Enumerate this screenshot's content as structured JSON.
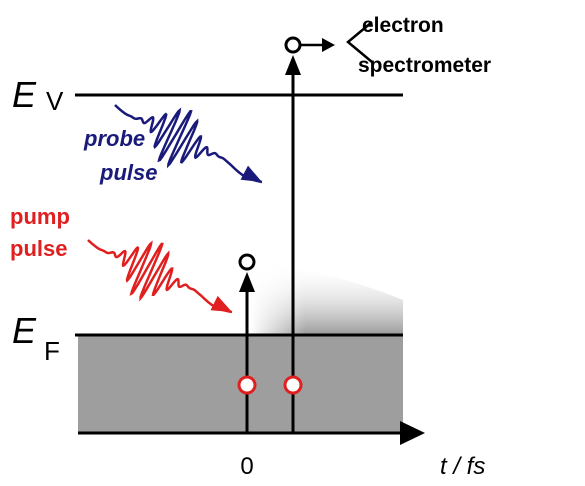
{
  "labels": {
    "ev_main": "E",
    "ev_sub": "V",
    "ef_main": "E",
    "ef_sub": "F",
    "probe_1": "probe",
    "probe_2": "pulse",
    "pump_1": "pump",
    "pump_2": "pulse",
    "spec_1": "electron",
    "spec_2": "spectrometer",
    "time_zero": "0",
    "time_axis": "t / fs"
  }
}
